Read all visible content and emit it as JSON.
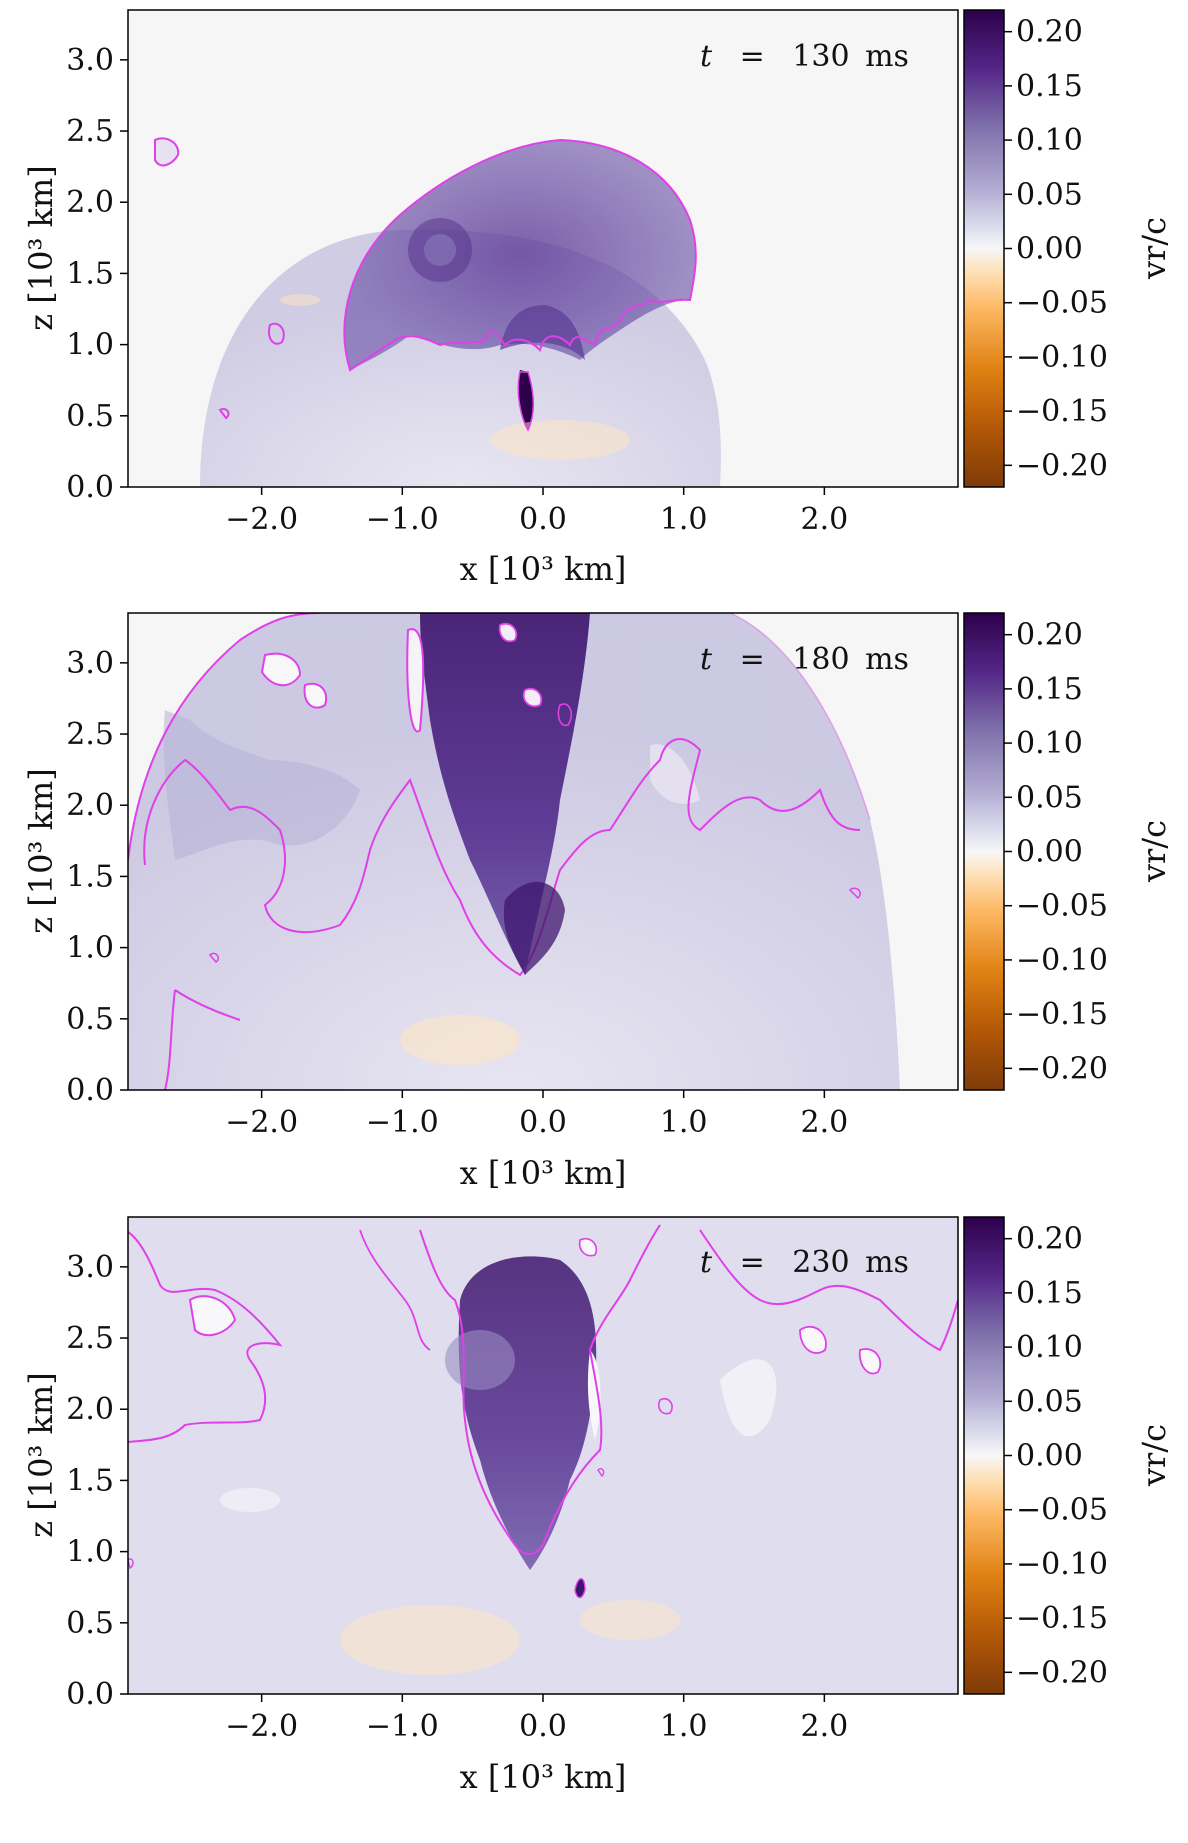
{
  "chart_data": [
    {
      "type": "heatmap",
      "annotation": {
        "variable": "t",
        "value": "130",
        "unit": "ms"
      },
      "xlabel": "x [10³ km]",
      "ylabel": "z [10³ km]",
      "xlim": [
        -2.95,
        2.95
      ],
      "ylim": [
        0.0,
        3.35
      ],
      "xticks": [
        "−2.0",
        "−1.0",
        "0.0",
        "1.0",
        "2.0"
      ],
      "xtick_values": [
        -2.0,
        -1.0,
        0.0,
        1.0,
        2.0
      ],
      "yticks": [
        "0.0",
        "0.5",
        "1.0",
        "1.5",
        "2.0",
        "2.5",
        "3.0"
      ],
      "ytick_values": [
        0.0,
        0.5,
        1.0,
        1.5,
        2.0,
        2.5,
        3.0
      ],
      "colorbar": {
        "label": "vr/c",
        "range": [
          -0.22,
          0.22
        ],
        "ticks": [
          "0.20",
          "0.15",
          "0.10",
          "0.05",
          "0.00",
          "−0.05",
          "−0.10",
          "−0.15",
          "−0.20"
        ],
        "tick_values": [
          0.2,
          0.15,
          0.1,
          0.05,
          0.0,
          -0.05,
          -0.1,
          -0.15,
          -0.2
        ],
        "colormap": [
          "#7f3b08",
          "#e08214",
          "#fdb863",
          "#fee0b6",
          "#f7f7f7",
          "#d8daeb",
          "#b2abd2",
          "#8073ac",
          "#2d004b"
        ]
      },
      "contour_color": "#e040e8"
    },
    {
      "type": "heatmap",
      "annotation": {
        "variable": "t",
        "value": "180",
        "unit": "ms"
      },
      "xlabel": "x [10³ km]",
      "ylabel": "z [10³ km]",
      "xlim": [
        -2.95,
        2.95
      ],
      "ylim": [
        0.0,
        3.35
      ],
      "xticks": [
        "−2.0",
        "−1.0",
        "0.0",
        "1.0",
        "2.0"
      ],
      "xtick_values": [
        -2.0,
        -1.0,
        0.0,
        1.0,
        2.0
      ],
      "yticks": [
        "0.0",
        "0.5",
        "1.0",
        "1.5",
        "2.0",
        "2.5",
        "3.0"
      ],
      "ytick_values": [
        0.0,
        0.5,
        1.0,
        1.5,
        2.0,
        2.5,
        3.0
      ],
      "colorbar": {
        "label": "vr/c",
        "range": [
          -0.22,
          0.22
        ],
        "ticks": [
          "0.20",
          "0.15",
          "0.10",
          "0.05",
          "0.00",
          "−0.05",
          "−0.10",
          "−0.15",
          "−0.20"
        ],
        "tick_values": [
          0.2,
          0.15,
          0.1,
          0.05,
          0.0,
          -0.05,
          -0.1,
          -0.15,
          -0.2
        ],
        "colormap": [
          "#7f3b08",
          "#e08214",
          "#fdb863",
          "#fee0b6",
          "#f7f7f7",
          "#d8daeb",
          "#b2abd2",
          "#8073ac",
          "#2d004b"
        ]
      },
      "contour_color": "#e040e8"
    },
    {
      "type": "heatmap",
      "annotation": {
        "variable": "t",
        "value": "230",
        "unit": "ms"
      },
      "xlabel": "x [10³ km]",
      "ylabel": "z [10³ km]",
      "xlim": [
        -2.95,
        2.95
      ],
      "ylim": [
        0.0,
        3.35
      ],
      "xticks": [
        "−2.0",
        "−1.0",
        "0.0",
        "1.0",
        "2.0"
      ],
      "xtick_values": [
        -2.0,
        -1.0,
        0.0,
        1.0,
        2.0
      ],
      "yticks": [
        "0.0",
        "0.5",
        "1.0",
        "1.5",
        "2.0",
        "2.5",
        "3.0"
      ],
      "ytick_values": [
        0.0,
        0.5,
        1.0,
        1.5,
        2.0,
        2.5,
        3.0
      ],
      "colorbar": {
        "label": "vr/c",
        "range": [
          -0.22,
          0.22
        ],
        "ticks": [
          "0.20",
          "0.15",
          "0.10",
          "0.05",
          "0.00",
          "−0.05",
          "−0.10",
          "−0.15",
          "−0.20"
        ],
        "tick_values": [
          0.2,
          0.15,
          0.1,
          0.05,
          0.0,
          -0.05,
          -0.1,
          -0.15,
          -0.2
        ],
        "colormap": [
          "#7f3b08",
          "#e08214",
          "#fdb863",
          "#fee0b6",
          "#f7f7f7",
          "#d8daeb",
          "#b2abd2",
          "#8073ac",
          "#2d004b"
        ]
      },
      "contour_color": "#e040e8"
    }
  ]
}
